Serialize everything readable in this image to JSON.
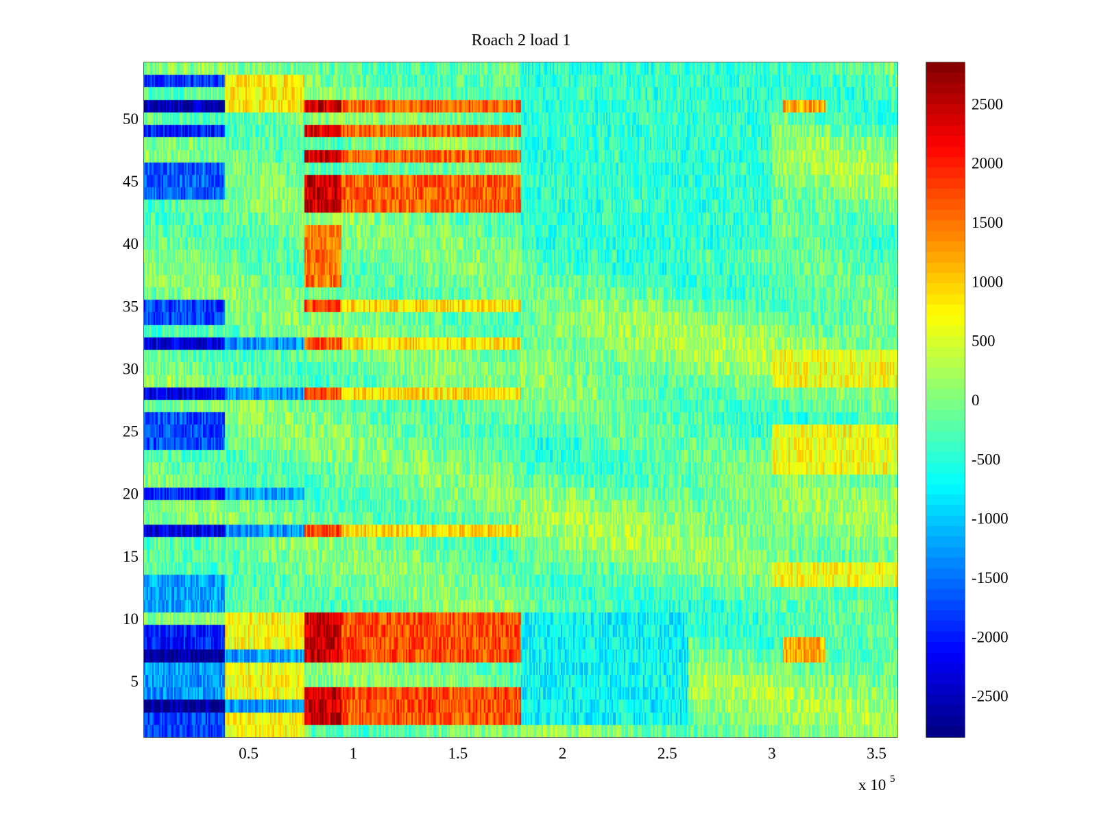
{
  "chart_data": {
    "type": "heatmap",
    "title": "Roach 2 load 1",
    "xlabel": "",
    "ylabel": "",
    "x_multiplier_label": "x 10",
    "x_multiplier_exponent": "5",
    "xlim": [
      0,
      360000
    ],
    "ylim": [
      0.5,
      54.5
    ],
    "x_ticks": [
      {
        "value": 50000,
        "label": "0.5"
      },
      {
        "value": 100000,
        "label": "1"
      },
      {
        "value": 150000,
        "label": "1.5"
      },
      {
        "value": 200000,
        "label": "2"
      },
      {
        "value": 250000,
        "label": "2.5"
      },
      {
        "value": 300000,
        "label": "3"
      },
      {
        "value": 350000,
        "label": "3.5"
      }
    ],
    "y_ticks": [
      {
        "value": 5,
        "label": "5"
      },
      {
        "value": 10,
        "label": "10"
      },
      {
        "value": 15,
        "label": "15"
      },
      {
        "value": 20,
        "label": "20"
      },
      {
        "value": 25,
        "label": "25"
      },
      {
        "value": 30,
        "label": "30"
      },
      {
        "value": 35,
        "label": "35"
      },
      {
        "value": 40,
        "label": "40"
      },
      {
        "value": 45,
        "label": "45"
      },
      {
        "value": 50,
        "label": "50"
      }
    ],
    "colorbar": {
      "colormap": "jet",
      "clim": [
        -2850,
        2850
      ],
      "ticks": [
        {
          "value": 2500,
          "label": "2500"
        },
        {
          "value": 2000,
          "label": "2000"
        },
        {
          "value": 1500,
          "label": "1500"
        },
        {
          "value": 1000,
          "label": "1000"
        },
        {
          "value": 500,
          "label": "500"
        },
        {
          "value": 0,
          "label": "0"
        },
        {
          "value": -500,
          "label": "-500"
        },
        {
          "value": -1000,
          "label": "-1000"
        },
        {
          "value": -1500,
          "label": "-1500"
        },
        {
          "value": -2000,
          "label": "-2000"
        },
        {
          "value": -2500,
          "label": "-2500"
        }
      ]
    },
    "rows": 54,
    "baseline_value": -100,
    "regions": [
      {
        "x_range": [
          0,
          38000
        ],
        "rows": [
          1,
          2
        ],
        "value": -1800
      },
      {
        "x_range": [
          0,
          38000
        ],
        "rows": [
          3
        ],
        "value": -2750
      },
      {
        "x_range": [
          0,
          38000
        ],
        "rows": [
          4,
          5,
          6
        ],
        "value": -1300
      },
      {
        "x_range": [
          0,
          38000
        ],
        "rows": [
          7
        ],
        "value": -2700
      },
      {
        "x_range": [
          0,
          38000
        ],
        "rows": [
          8,
          9
        ],
        "value": -2000
      },
      {
        "x_range": [
          0,
          38000
        ],
        "rows": [
          11,
          12,
          13
        ],
        "value": -1200
      },
      {
        "x_range": [
          0,
          38000
        ],
        "rows": [
          17
        ],
        "value": -2300
      },
      {
        "x_range": [
          0,
          38000
        ],
        "rows": [
          20
        ],
        "value": -2000
      },
      {
        "x_range": [
          0,
          38000
        ],
        "rows": [
          24,
          25,
          26
        ],
        "value": -1700
      },
      {
        "x_range": [
          0,
          38000
        ],
        "rows": [
          28
        ],
        "value": -2200
      },
      {
        "x_range": [
          0,
          38000
        ],
        "rows": [
          32
        ],
        "value": -2300
      },
      {
        "x_range": [
          0,
          38000
        ],
        "rows": [
          34,
          35
        ],
        "value": -1800
      },
      {
        "x_range": [
          0,
          38000
        ],
        "rows": [
          44,
          45,
          46
        ],
        "value": -1600
      },
      {
        "x_range": [
          0,
          38000
        ],
        "rows": [
          49
        ],
        "value": -2000
      },
      {
        "x_range": [
          0,
          38000
        ],
        "rows": [
          51
        ],
        "value": -2500
      },
      {
        "x_range": [
          0,
          38000
        ],
        "rows": [
          53
        ],
        "value": -1900
      },
      {
        "x_range": [
          38000,
          76000
        ],
        "rows": [
          3,
          7,
          17,
          20,
          28,
          32
        ],
        "value": -1300
      },
      {
        "x_range": [
          38000,
          76000
        ],
        "rows": [
          1,
          2,
          4,
          5,
          6,
          8,
          9,
          10
        ],
        "value": 700
      },
      {
        "x_range": [
          38000,
          76000
        ],
        "rows": [
          51,
          52,
          53
        ],
        "value": 800
      },
      {
        "x_range": [
          76000,
          94000
        ],
        "rows": [
          2,
          3,
          4,
          7,
          8,
          9,
          10
        ],
        "value": 2450
      },
      {
        "x_range": [
          76000,
          94000
        ],
        "rows": [
          17,
          28,
          32,
          35
        ],
        "value": 1700
      },
      {
        "x_range": [
          76000,
          94000
        ],
        "rows": [
          37,
          38,
          39,
          40,
          41
        ],
        "value": 1500
      },
      {
        "x_range": [
          76000,
          94000
        ],
        "rows": [
          43,
          44,
          45,
          47,
          49,
          51
        ],
        "value": 2400
      },
      {
        "x_range": [
          94000,
          180000
        ],
        "rows": [
          2,
          3,
          4,
          7,
          8,
          9,
          10
        ],
        "value": 1700
      },
      {
        "x_range": [
          94000,
          180000
        ],
        "rows": [
          17,
          28,
          32,
          35
        ],
        "value": 900
      },
      {
        "x_range": [
          94000,
          180000
        ],
        "rows": [
          43,
          44,
          45,
          47,
          49,
          51
        ],
        "value": 1600
      },
      {
        "x_range": [
          180000,
          260000
        ],
        "rows": [
          2,
          3,
          4,
          5,
          6,
          7,
          8,
          9,
          10
        ],
        "value": -700
      },
      {
        "x_range": [
          180000,
          300000
        ],
        "rows": [
          40,
          41,
          42,
          43,
          44,
          45,
          46,
          47,
          48,
          49,
          50,
          51,
          52,
          53,
          54
        ],
        "value": -450
      },
      {
        "x_range": [
          300000,
          360000
        ],
        "rows": [
          13,
          14,
          22,
          23,
          24,
          25,
          29,
          30,
          31
        ],
        "value": 650
      },
      {
        "x_range": [
          305000,
          325000
        ],
        "rows": [
          7,
          8,
          51
        ],
        "value": 1200
      }
    ]
  }
}
